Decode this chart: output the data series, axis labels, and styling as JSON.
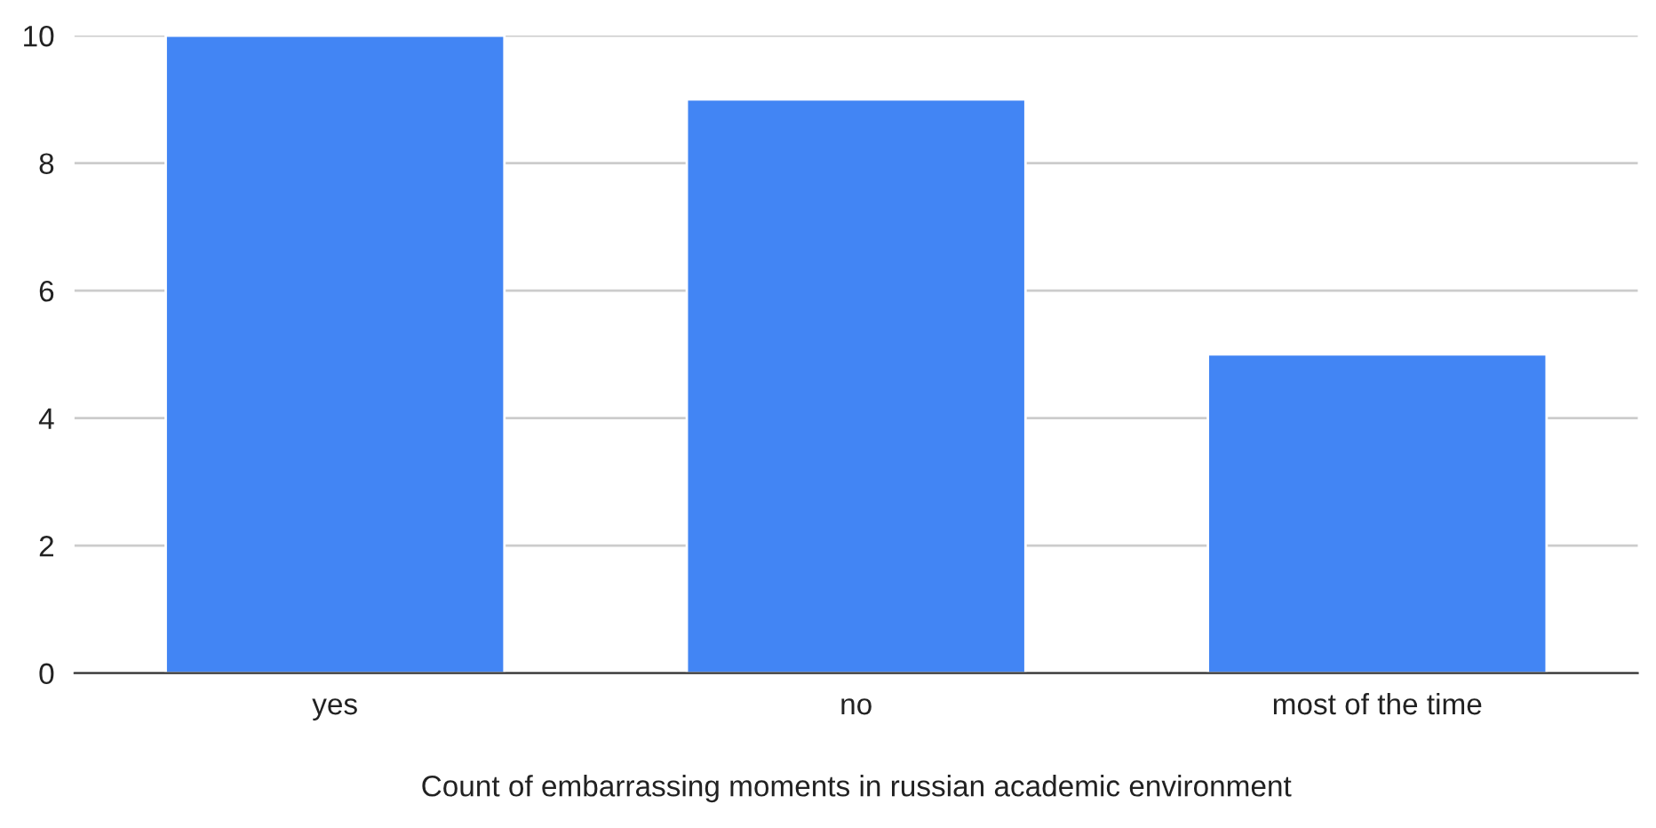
{
  "chart_data": {
    "type": "bar",
    "xlabel": "Count of embarrassing moments in russian academic environment",
    "categories": [
      "yes",
      "no",
      "most of the time"
    ],
    "values": [
      10,
      9,
      5
    ],
    "color": "#4285f4",
    "ylim": [
      0,
      10
    ],
    "yticks": [
      0,
      2,
      4,
      6,
      8,
      10
    ],
    "grid": "y"
  }
}
